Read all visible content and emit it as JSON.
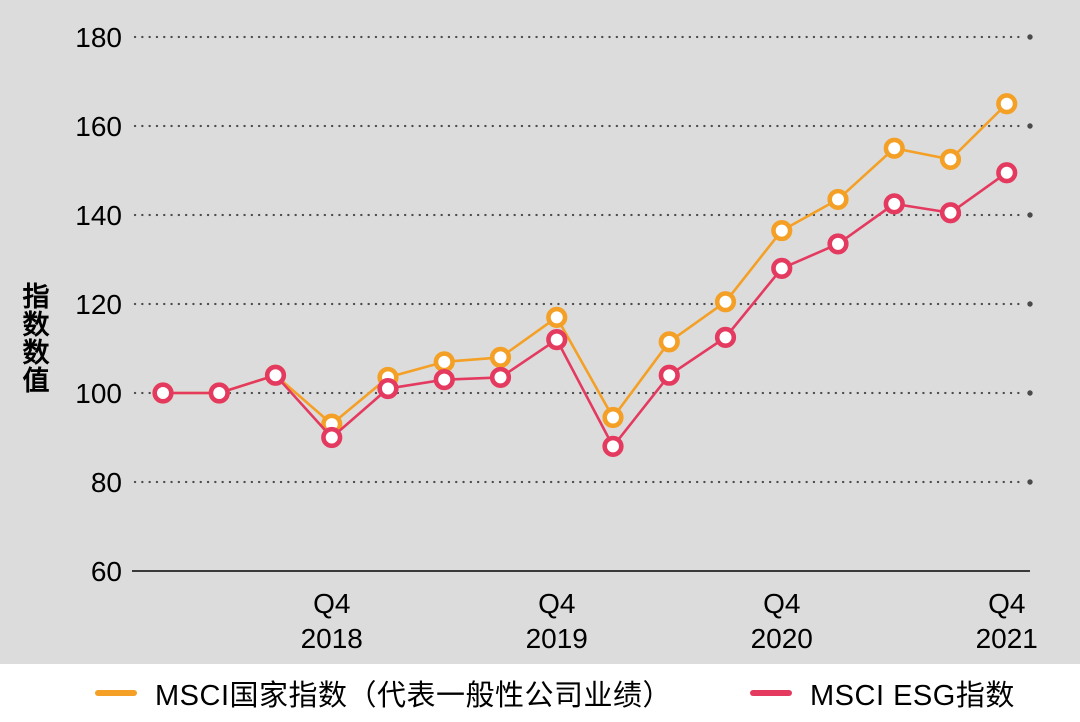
{
  "chart": {
    "background_color": "#dcdcdc",
    "grid_color": "#4b4b4b",
    "axis_line_color": "#3a3a3a",
    "label_color": "#000000",
    "marker_fill": "#ffffff"
  },
  "chart_data": {
    "type": "line",
    "title": "",
    "xlabel": "",
    "ylabel": "指数数值",
    "ylim": [
      60,
      180
    ],
    "yticks": [
      60,
      80,
      100,
      120,
      140,
      160,
      180
    ],
    "grid": "dotted-horizontal",
    "legend_position": "bottom",
    "categories": [
      "Q1 2018",
      "Q2 2018",
      "Q3 2018",
      "Q4 2018",
      "Q1 2019",
      "Q2 2019",
      "Q3 2019",
      "Q4 2019",
      "Q1 2020",
      "Q2 2020",
      "Q3 2020",
      "Q4 2020",
      "Q1 2021",
      "Q2 2021",
      "Q3 2021",
      "Q4 2021"
    ],
    "x_tick_labels": [
      {
        "index": 3,
        "quarter": "Q4",
        "year": "2018"
      },
      {
        "index": 7,
        "quarter": "Q4",
        "year": "2019"
      },
      {
        "index": 11,
        "quarter": "Q4",
        "year": "2020"
      },
      {
        "index": 15,
        "quarter": "Q4",
        "year": "2021"
      }
    ],
    "series": [
      {
        "name": "MSCI国家指数（代表一般性公司业绩）",
        "color": "#F4A026",
        "values": [
          100,
          100,
          104,
          93,
          103.5,
          107,
          108,
          117,
          94.5,
          111.5,
          120.5,
          136.5,
          143.5,
          155,
          152.5,
          165
        ]
      },
      {
        "name": "MSCI ESG指数",
        "color": "#E43A60",
        "values": [
          100,
          100,
          104,
          90,
          101,
          103,
          103.5,
          112,
          88,
          104,
          112.5,
          128,
          133.5,
          142.5,
          140.5,
          149.5
        ]
      }
    ]
  }
}
